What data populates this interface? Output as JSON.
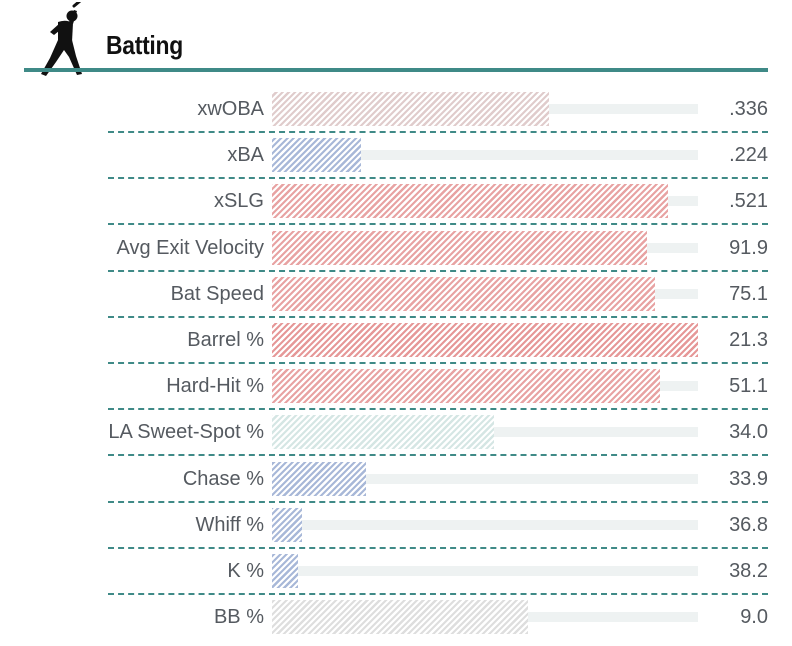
{
  "header": {
    "title": "Batting",
    "icon": "batter-silhouette-icon"
  },
  "colors": {
    "accent": "#3f8a87",
    "high": "#e8a3a3",
    "neutral": "#dedede",
    "low": "#a8b8d8",
    "teal_light": "#d5e6e4",
    "track": "#eef2f2"
  },
  "chart_data": {
    "type": "bar",
    "title": "Batting",
    "orientation": "horizontal",
    "percentile_scale": [
      0,
      100
    ],
    "categories": [
      "xwOBA",
      "xBA",
      "xSLG",
      "Avg Exit Velocity",
      "Bat Speed",
      "Barrel %",
      "Hard-Hit %",
      "LA Sweet-Spot %",
      "Chase %",
      "Whiff %",
      "K %",
      "BB %"
    ],
    "series": [
      {
        "values": [
          65,
          21,
          93,
          88,
          90,
          100,
          91,
          52,
          22,
          7,
          6,
          60
        ]
      }
    ],
    "rows": [
      {
        "label": "xwOBA",
        "value": ".336",
        "percentile": 65,
        "color": "#e0cccc"
      },
      {
        "label": "xBA",
        "value": ".224",
        "percentile": 21,
        "color": "#a8b8d8"
      },
      {
        "label": "xSLG",
        "value": ".521",
        "percentile": 93,
        "color": "#e8a3a3"
      },
      {
        "label": "Avg Exit Velocity",
        "value": "91.9",
        "percentile": 88,
        "color": "#e8a3a3"
      },
      {
        "label": "Bat Speed",
        "value": "75.1",
        "percentile": 90,
        "color": "#e8a3a3"
      },
      {
        "label": "Barrel %",
        "value": "21.3",
        "percentile": 100,
        "color": "#e69898"
      },
      {
        "label": "Hard-Hit %",
        "value": "51.1",
        "percentile": 91,
        "color": "#e8a3a3"
      },
      {
        "label": "LA Sweet-Spot %",
        "value": "34.0",
        "percentile": 52,
        "color": "#d5e6e4"
      },
      {
        "label": "Chase %",
        "value": "33.9",
        "percentile": 22,
        "color": "#a8b8d8"
      },
      {
        "label": "Whiff %",
        "value": "36.8",
        "percentile": 7,
        "color": "#a8b8d8"
      },
      {
        "label": "K %",
        "value": "38.2",
        "percentile": 6,
        "color": "#a8b8d8"
      },
      {
        "label": "BB %",
        "value": "9.0",
        "percentile": 60,
        "color": "#dedede"
      }
    ]
  }
}
